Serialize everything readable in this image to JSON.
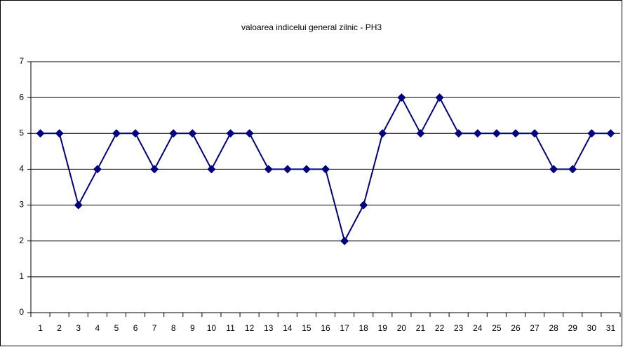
{
  "chart_data": {
    "type": "line",
    "title": "valoarea indicelui general zilnic - PH3",
    "categories": [
      "1",
      "2",
      "3",
      "4",
      "5",
      "6",
      "7",
      "8",
      "9",
      "10",
      "11",
      "12",
      "13",
      "14",
      "15",
      "16",
      "17",
      "18",
      "19",
      "20",
      "21",
      "22",
      "23",
      "24",
      "25",
      "26",
      "27",
      "28",
      "29",
      "30",
      "31"
    ],
    "series": [
      {
        "name": "PH3",
        "color": "#000080",
        "values": [
          5,
          5,
          3,
          4,
          5,
          5,
          4,
          5,
          5,
          4,
          5,
          5,
          4,
          4,
          4,
          4,
          2,
          3,
          5,
          6,
          5,
          6,
          5,
          5,
          5,
          5,
          5,
          4,
          4,
          5,
          5
        ]
      }
    ],
    "ylim": [
      0,
      7
    ],
    "yticks": [
      0,
      1,
      2,
      3,
      4,
      5,
      6,
      7
    ],
    "grid": true,
    "legend": false
  }
}
